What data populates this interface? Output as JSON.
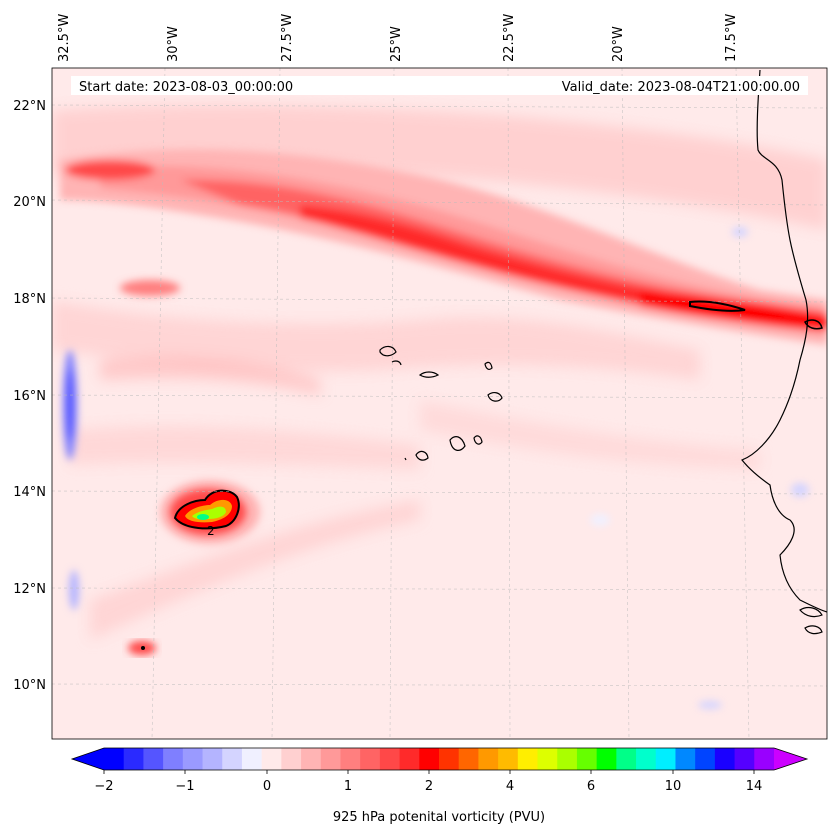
{
  "map": {
    "lon_labels": [
      "32.5°W",
      "30°W",
      "27.5°W",
      "25°W",
      "22.5°W",
      "20°W",
      "17.5°W"
    ],
    "lat_labels": [
      "22°N",
      "20°N",
      "18°N",
      "16°N",
      "14°N",
      "12°N",
      "10°N"
    ],
    "start_date": "Start date: 2023-08-03_00:00:00",
    "valid_date": "Valid_date: 2023-08-04T21:00:00.00",
    "contour_label": "2"
  },
  "colorbar": {
    "tick_labels": [
      "−2",
      "−1",
      "0",
      "1",
      "2",
      "4",
      "6",
      "10",
      "14"
    ],
    "label": "925 hPa potenital vorticity (PVU)",
    "colors": [
      "#0000ff",
      "#2a2aff",
      "#5555ff",
      "#7f7fff",
      "#9a9aff",
      "#b4b4ff",
      "#d4d4ff",
      "#f0f0ff",
      "#ffeaea",
      "#ffd0d0",
      "#ffb4b4",
      "#ff9999",
      "#ff7f7f",
      "#ff6464",
      "#ff4848",
      "#ff2a2a",
      "#ff0000",
      "#ff3300",
      "#ff6600",
      "#ff9900",
      "#ffbb00",
      "#ffee00",
      "#ddff00",
      "#aaff00",
      "#66ff00",
      "#00ff00",
      "#00ff88",
      "#00ffcc",
      "#00eeff",
      "#0088ff",
      "#0044ff",
      "#1a00ff",
      "#5500ff",
      "#9900ff"
    ],
    "extend_low": "#0000ff",
    "extend_high": "#cc00ff"
  }
}
